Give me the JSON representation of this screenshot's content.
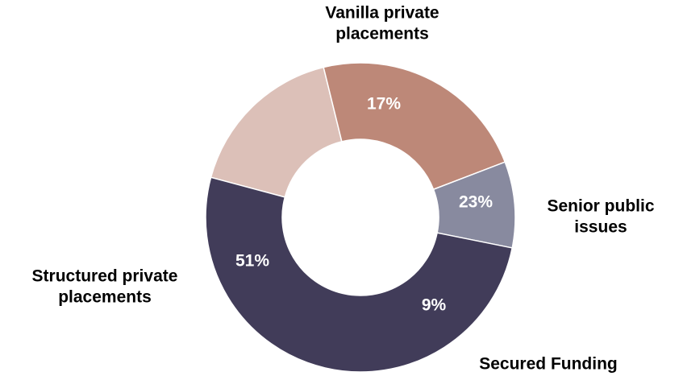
{
  "chart_data": {
    "type": "pie",
    "donut": true,
    "title": "",
    "slices": [
      {
        "label_lines": [
          "Vanilla private",
          "placements"
        ],
        "value": 17,
        "value_label": "17%",
        "color": "#dcc0b8"
      },
      {
        "label_lines": [
          "Senior public",
          "issues"
        ],
        "value": 23,
        "value_label": "23%",
        "color": "#bd8878"
      },
      {
        "label_lines": [
          "Secured Funding"
        ],
        "value": 9,
        "value_label": "9%",
        "color": "#888a9f"
      },
      {
        "label_lines": [
          "Structured private",
          "placements"
        ],
        "value": 51,
        "value_label": "51%",
        "color": "#413c59"
      }
    ],
    "legend": "none"
  }
}
